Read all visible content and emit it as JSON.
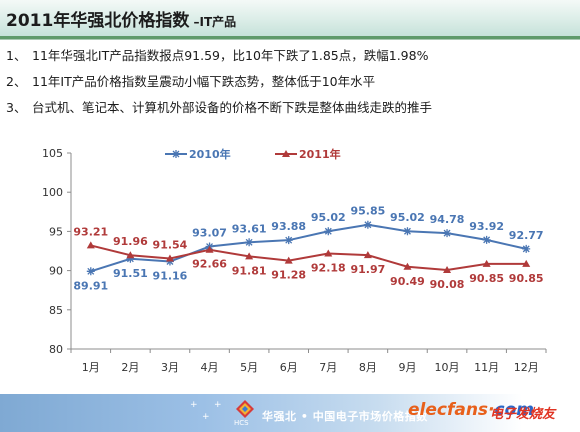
{
  "header": {
    "title_main": "2011年华强北价格指数",
    "title_sep": " –",
    "title_sub": "IT产品"
  },
  "bullets": [
    {
      "num": "1、",
      "text": "11年华强北IT产品指数报点91.59，比10年下跌了1.85点，跌幅1.98%"
    },
    {
      "num": "2、",
      "text": "11年IT产品价格指数呈震动小幅下跌态势，整体低于10年水平"
    },
    {
      "num": "3、",
      "text": "台式机、笔记本、计算机外部设备的价格不断下跌是整体曲线走跌的推手"
    }
  ],
  "chart_data": {
    "type": "line",
    "categories": [
      "1月",
      "2月",
      "3月",
      "4月",
      "5月",
      "6月",
      "7月",
      "8月",
      "9月",
      "10月",
      "11月",
      "12月"
    ],
    "series": [
      {
        "name": "2010年",
        "color": "#4a76b3",
        "marker": "asterisk",
        "values": [
          89.91,
          91.51,
          91.16,
          93.07,
          93.61,
          93.88,
          95.02,
          95.85,
          95.02,
          94.78,
          93.92,
          92.77
        ]
      },
      {
        "name": "2011年",
        "color": "#b03a3a",
        "marker": "triangle",
        "values": [
          93.21,
          91.96,
          91.54,
          92.66,
          91.81,
          91.28,
          92.18,
          91.97,
          90.49,
          90.08,
          90.85,
          90.85
        ]
      }
    ],
    "ylim": [
      80,
      105
    ],
    "yticks": [
      80,
      85,
      90,
      95,
      100,
      105
    ],
    "legend": "top",
    "grid": false
  },
  "footer": {
    "brand_text": "华强北 • 中国电子市场价格指数",
    "hcs": "HCS",
    "elecfans": "elecfans",
    "elecfans_dot": "·",
    "elecfans_com": "com",
    "elecfans_cn": "电子发烧友"
  }
}
